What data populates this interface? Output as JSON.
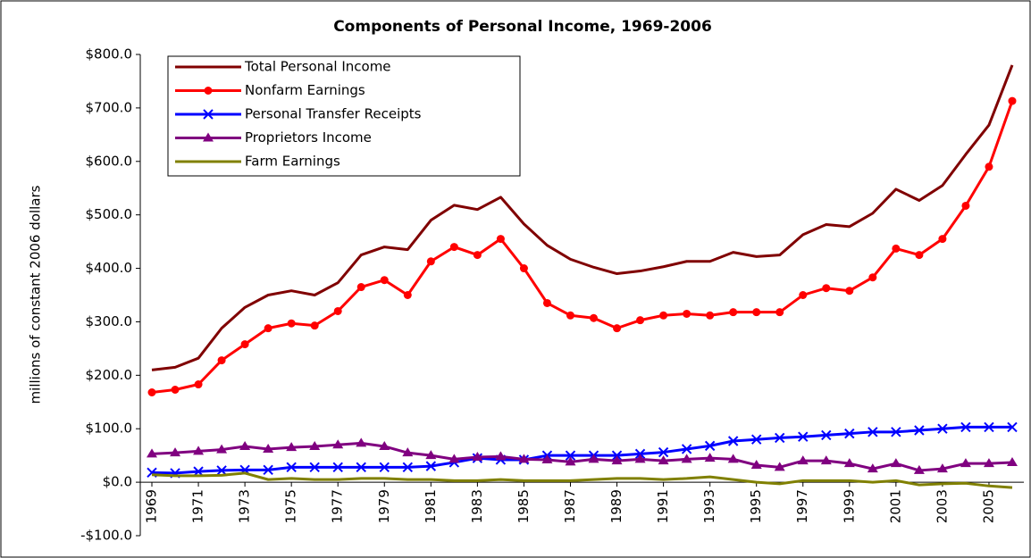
{
  "chart_data": {
    "type": "line",
    "title": "Components of Personal Income, 1969-2006",
    "y_label": "millions of constant 2006 dollars",
    "x": [
      1969,
      1970,
      1971,
      1972,
      1973,
      1974,
      1975,
      1976,
      1977,
      1978,
      1979,
      1980,
      1981,
      1982,
      1983,
      1984,
      1985,
      1986,
      1987,
      1988,
      1989,
      1990,
      1991,
      1992,
      1993,
      1994,
      1995,
      1996,
      1997,
      1998,
      1999,
      2000,
      2001,
      2002,
      2003,
      2004,
      2005,
      2006
    ],
    "xlim": [
      1968.5,
      2006.5
    ],
    "xticks": [
      1969,
      1971,
      1973,
      1975,
      1977,
      1979,
      1981,
      1983,
      1985,
      1987,
      1989,
      1991,
      1993,
      1995,
      1997,
      1999,
      2001,
      2003,
      2005
    ],
    "ylim": [
      -100,
      800
    ],
    "yticks": [
      {
        "value": -100,
        "label": "-$100.0"
      },
      {
        "value": 0,
        "label": "$0.0"
      },
      {
        "value": 100,
        "label": "$100.0"
      },
      {
        "value": 200,
        "label": "$200.0"
      },
      {
        "value": 300,
        "label": "$300.0"
      },
      {
        "value": 400,
        "label": "$400.0"
      },
      {
        "value": 500,
        "label": "$500.0"
      },
      {
        "value": 600,
        "label": "$600.0"
      },
      {
        "value": 700,
        "label": "$700.0"
      },
      {
        "value": 800,
        "label": "$800.0"
      }
    ],
    "grid": false,
    "legend": "top-left",
    "series": [
      {
        "name": "Total Personal Income",
        "color": "#800000",
        "marker": "none",
        "values": [
          210,
          215,
          232,
          288,
          327,
          350,
          358,
          350,
          373,
          425,
          440,
          435,
          490,
          518,
          510,
          533,
          483,
          443,
          417,
          402,
          390,
          395,
          403,
          413,
          413,
          430,
          422,
          425,
          463,
          482,
          478,
          503,
          548,
          527,
          555,
          613,
          668,
          780
        ]
      },
      {
        "name": "Nonfarm Earnings",
        "color": "#ff0000",
        "marker": "circle",
        "values": [
          168,
          173,
          183,
          228,
          258,
          288,
          297,
          293,
          320,
          365,
          378,
          350,
          413,
          440,
          425,
          455,
          400,
          335,
          312,
          307,
          288,
          303,
          312,
          315,
          312,
          318,
          318,
          318,
          350,
          363,
          358,
          383,
          437,
          425,
          455,
          517,
          590,
          713
        ]
      },
      {
        "name": "Personal Transfer Receipts",
        "color": "#0000ff",
        "marker": "x",
        "values": [
          18,
          17,
          20,
          22,
          23,
          23,
          28,
          28,
          28,
          28,
          28,
          28,
          30,
          37,
          45,
          42,
          42,
          50,
          50,
          50,
          50,
          53,
          56,
          62,
          68,
          77,
          80,
          83,
          85,
          88,
          91,
          94,
          94,
          97,
          100,
          103,
          103,
          103
        ]
      },
      {
        "name": "Proprietors Income",
        "color": "#800080",
        "marker": "triangle",
        "values": [
          53,
          55,
          58,
          61,
          67,
          62,
          65,
          67,
          70,
          73,
          67,
          55,
          50,
          43,
          47,
          48,
          43,
          42,
          38,
          43,
          40,
          43,
          40,
          43,
          45,
          43,
          32,
          28,
          40,
          40,
          35,
          25,
          35,
          22,
          25,
          35,
          35,
          37
        ]
      },
      {
        "name": "Farm Earnings",
        "color": "#808000",
        "marker": "none",
        "values": [
          14,
          12,
          12,
          13,
          17,
          5,
          7,
          5,
          5,
          7,
          7,
          5,
          5,
          3,
          3,
          5,
          3,
          3,
          3,
          5,
          7,
          7,
          5,
          7,
          10,
          5,
          0,
          -3,
          3,
          3,
          3,
          0,
          3,
          -5,
          -3,
          -2,
          -7,
          -10
        ]
      }
    ]
  }
}
